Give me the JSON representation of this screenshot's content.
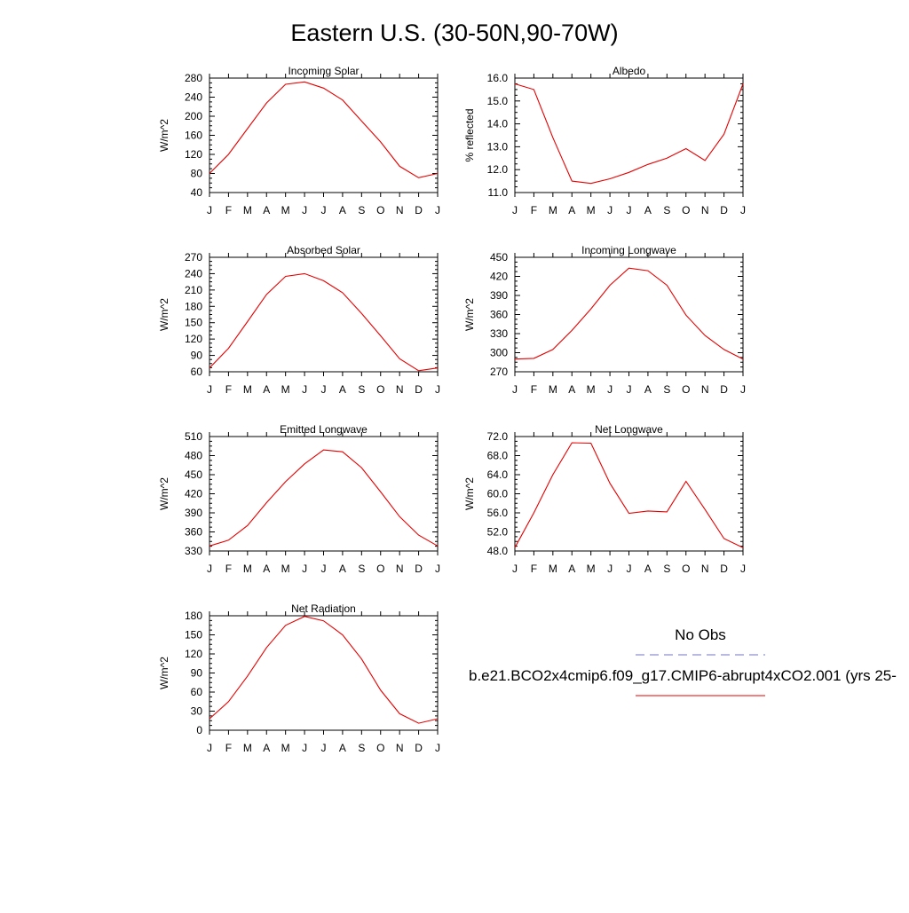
{
  "page": {
    "title": "Eastern U.S. (30-50N,90-70W)"
  },
  "legend": {
    "obs_label": "No Obs",
    "model_label": "b.e21.BCO2x4cmip6.f09_g17.CMIP6-abrupt4xCO2.001 (yrs 25-",
    "obs_color": "#6f6fe6",
    "model_color": "#e60000"
  },
  "chart_data": [
    {
      "type": "line",
      "title": "Incoming Solar",
      "ylabel": "W/m^2",
      "x": [
        "J",
        "F",
        "M",
        "A",
        "M",
        "J",
        "J",
        "A",
        "S",
        "O",
        "N",
        "D",
        "J"
      ],
      "ylim": [
        40,
        280
      ],
      "yticks": [
        "40",
        "80",
        "120",
        "160",
        "200",
        "240",
        "280"
      ],
      "series": [
        {
          "values": [
            80,
            120,
            174,
            228,
            267,
            272,
            259,
            234,
            190,
            146,
            95,
            71,
            80
          ]
        }
      ]
    },
    {
      "type": "line",
      "title": "Albedo",
      "ylabel": "% reflected",
      "x": [
        "J",
        "F",
        "M",
        "A",
        "M",
        "J",
        "J",
        "A",
        "S",
        "O",
        "N",
        "D",
        "J"
      ],
      "ylim": [
        11.0,
        16.0
      ],
      "yticks": [
        "11.0",
        "12.0",
        "13.0",
        "14.0",
        "15.0",
        "16.0"
      ],
      "series": [
        {
          "values": [
            15.75,
            15.5,
            13.4,
            11.5,
            11.4,
            11.6,
            11.88,
            12.23,
            12.5,
            12.92,
            12.4,
            13.55,
            15.75
          ]
        }
      ]
    },
    {
      "type": "line",
      "title": "Absorbed Solar",
      "ylabel": "W/m^2",
      "x": [
        "J",
        "F",
        "M",
        "A",
        "M",
        "J",
        "J",
        "A",
        "S",
        "O",
        "N",
        "D",
        "J"
      ],
      "ylim": [
        60,
        270
      ],
      "yticks": [
        "60",
        "90",
        "120",
        "150",
        "180",
        "210",
        "240",
        "270"
      ],
      "series": [
        {
          "values": [
            67,
            103,
            152,
            202,
            235,
            240,
            227,
            205,
            167,
            126,
            84,
            62,
            67
          ]
        }
      ]
    },
    {
      "type": "line",
      "title": "Incoming Longwave",
      "ylabel": "W/m^2",
      "x": [
        "J",
        "F",
        "M",
        "A",
        "M",
        "J",
        "J",
        "A",
        "S",
        "O",
        "N",
        "D",
        "J"
      ],
      "ylim": [
        270,
        450
      ],
      "yticks": [
        "270",
        "300",
        "330",
        "360",
        "390",
        "420",
        "450"
      ],
      "series": [
        {
          "values": [
            290,
            291,
            305,
            335,
            369,
            406,
            433,
            429,
            406,
            359,
            327,
            305,
            290
          ]
        }
      ]
    },
    {
      "type": "line",
      "title": "Emitted Longwave",
      "ylabel": "W/m^2",
      "x": [
        "J",
        "F",
        "M",
        "A",
        "M",
        "J",
        "J",
        "A",
        "S",
        "O",
        "N",
        "D",
        "J"
      ],
      "ylim": [
        330,
        510
      ],
      "yticks": [
        "330",
        "360",
        "390",
        "420",
        "450",
        "480",
        "510"
      ],
      "series": [
        {
          "values": [
            338,
            347,
            370,
            406,
            439,
            467,
            489,
            486,
            461,
            423,
            384,
            355,
            338
          ]
        }
      ]
    },
    {
      "type": "line",
      "title": "Net Longwave",
      "ylabel": "W/m^2",
      "x": [
        "J",
        "F",
        "M",
        "A",
        "M",
        "J",
        "J",
        "A",
        "S",
        "O",
        "N",
        "D",
        "J"
      ],
      "ylim": [
        48.0,
        72.0
      ],
      "yticks": [
        "48.0",
        "52.0",
        "56.0",
        "60.0",
        "64.0",
        "68.0",
        "72.0"
      ],
      "series": [
        {
          "values": [
            48.7,
            56.0,
            64.0,
            70.7,
            70.6,
            62.2,
            55.9,
            56.4,
            56.2,
            62.6,
            56.7,
            50.6,
            48.7
          ]
        }
      ]
    },
    {
      "type": "line",
      "title": "Net Radiation",
      "ylabel": "W/m^2",
      "x": [
        "J",
        "F",
        "M",
        "A",
        "M",
        "J",
        "J",
        "A",
        "S",
        "O",
        "N",
        "D",
        "J"
      ],
      "ylim": [
        0,
        180
      ],
      "yticks": [
        "0",
        "30",
        "60",
        "90",
        "120",
        "150",
        "180"
      ],
      "series": [
        {
          "values": [
            18,
            45,
            85,
            130,
            165,
            179,
            172,
            150,
            112,
            63,
            26,
            11,
            18
          ]
        }
      ]
    }
  ]
}
